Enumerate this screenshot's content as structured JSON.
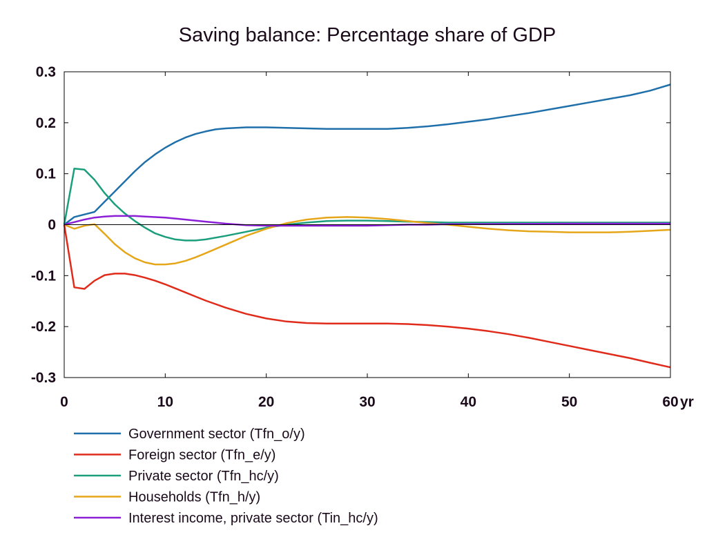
{
  "chart_data": {
    "type": "line",
    "title": "Saving balance: Percentage share of GDP",
    "xlabel": "",
    "ylabel": "",
    "x_unit": "yr",
    "xlim": [
      0,
      60
    ],
    "ylim": [
      -0.3,
      0.3
    ],
    "x_ticks": [
      0,
      10,
      20,
      30,
      40,
      50,
      60
    ],
    "x_tick_labels": [
      "0",
      "10",
      "20",
      "30",
      "40",
      "50",
      "60"
    ],
    "y_ticks": [
      0.3,
      0.2,
      0.1,
      0,
      -0.1,
      -0.2,
      -0.3
    ],
    "y_tick_labels": [
      "0.3",
      "0.2",
      "0.1",
      "0",
      "-0.1",
      "-0.2",
      "-0.3"
    ],
    "zero_line": true,
    "grid": false,
    "legend_position": "bottom-left",
    "series": [
      {
        "name": "Government sector (Tfn_o/y)",
        "color": "#1f6faa",
        "x": [
          0,
          1,
          2,
          3,
          4,
          5,
          6,
          7,
          8,
          9,
          10,
          11,
          12,
          13,
          14,
          15,
          16,
          17,
          18,
          20,
          22,
          24,
          26,
          28,
          30,
          32,
          34,
          36,
          38,
          40,
          42,
          44,
          46,
          48,
          50,
          52,
          54,
          56,
          58,
          60
        ],
        "y": [
          0,
          0.015,
          0.02,
          0.025,
          0.045,
          0.065,
          0.085,
          0.105,
          0.123,
          0.138,
          0.151,
          0.162,
          0.171,
          0.178,
          0.183,
          0.187,
          0.189,
          0.19,
          0.191,
          0.191,
          0.19,
          0.189,
          0.188,
          0.188,
          0.188,
          0.188,
          0.19,
          0.193,
          0.197,
          0.202,
          0.207,
          0.213,
          0.219,
          0.226,
          0.233,
          0.24,
          0.247,
          0.254,
          0.263,
          0.275
        ]
      },
      {
        "name": "Foreign sector (Tfn_e/y)",
        "color": "#e02a1a",
        "x": [
          0,
          1,
          2,
          3,
          4,
          5,
          6,
          7,
          8,
          9,
          10,
          11,
          12,
          13,
          14,
          16,
          18,
          20,
          22,
          24,
          26,
          28,
          30,
          32,
          34,
          36,
          38,
          40,
          42,
          44,
          46,
          48,
          50,
          52,
          54,
          56,
          58,
          60
        ],
        "y": [
          0,
          -0.123,
          -0.126,
          -0.11,
          -0.099,
          -0.096,
          -0.096,
          -0.099,
          -0.104,
          -0.11,
          -0.117,
          -0.125,
          -0.133,
          -0.141,
          -0.149,
          -0.163,
          -0.175,
          -0.184,
          -0.19,
          -0.193,
          -0.194,
          -0.194,
          -0.194,
          -0.194,
          -0.195,
          -0.197,
          -0.2,
          -0.204,
          -0.209,
          -0.215,
          -0.222,
          -0.23,
          -0.238,
          -0.246,
          -0.254,
          -0.262,
          -0.271,
          -0.28
        ]
      },
      {
        "name": "Private sector (Tfn_hc/y)",
        "color": "#1a9e7c",
        "x": [
          0,
          1,
          2,
          3,
          4,
          5,
          6,
          7,
          8,
          9,
          10,
          11,
          12,
          13,
          14,
          16,
          18,
          20,
          22,
          24,
          26,
          28,
          30,
          32,
          34,
          36,
          38,
          40,
          50,
          60
        ],
        "y": [
          0,
          0.11,
          0.108,
          0.088,
          0.062,
          0.04,
          0.022,
          0.007,
          -0.006,
          -0.017,
          -0.024,
          -0.029,
          -0.031,
          -0.031,
          -0.029,
          -0.022,
          -0.014,
          -0.006,
          0.0,
          0.004,
          0.007,
          0.008,
          0.008,
          0.007,
          0.006,
          0.005,
          0.004,
          0.004,
          0.004,
          0.004
        ]
      },
      {
        "name": "Households (Tfn_h/y)",
        "color": "#e6a619",
        "x": [
          0,
          1,
          2,
          3,
          4,
          5,
          6,
          7,
          8,
          9,
          10,
          11,
          12,
          13,
          14,
          16,
          18,
          20,
          22,
          24,
          26,
          28,
          30,
          32,
          34,
          36,
          38,
          40,
          42,
          44,
          46,
          48,
          50,
          52,
          54,
          56,
          58,
          60
        ],
        "y": [
          0,
          -0.008,
          -0.002,
          0.001,
          -0.018,
          -0.038,
          -0.054,
          -0.066,
          -0.074,
          -0.078,
          -0.078,
          -0.076,
          -0.071,
          -0.064,
          -0.056,
          -0.039,
          -0.022,
          -0.008,
          0.003,
          0.01,
          0.014,
          0.015,
          0.014,
          0.011,
          0.007,
          0.003,
          0.0,
          -0.004,
          -0.008,
          -0.011,
          -0.013,
          -0.014,
          -0.015,
          -0.015,
          -0.015,
          -0.014,
          -0.012,
          -0.01
        ]
      },
      {
        "name": "Interest income, private sector (Tin_hc/y)",
        "color": "#8a1fd6",
        "x": [
          0,
          1,
          2,
          3,
          4,
          5,
          6,
          7,
          8,
          10,
          12,
          14,
          16,
          18,
          20,
          22,
          24,
          26,
          28,
          30,
          32,
          34,
          36,
          38,
          40,
          50,
          60
        ],
        "y": [
          0,
          0.005,
          0.01,
          0.014,
          0.016,
          0.017,
          0.017,
          0.017,
          0.016,
          0.014,
          0.01,
          0.006,
          0.002,
          -0.001,
          -0.002,
          -0.002,
          -0.002,
          -0.002,
          -0.002,
          -0.002,
          -0.001,
          0.0,
          0.0,
          0.001,
          0.001,
          0.002,
          0.002
        ]
      }
    ]
  }
}
